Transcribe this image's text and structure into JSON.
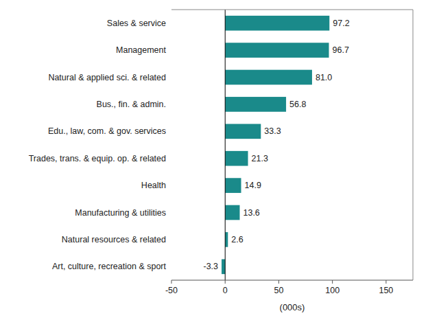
{
  "chart_data": {
    "type": "bar",
    "orientation": "horizontal",
    "categories": [
      "Art, culture, recreation & sport",
      "Natural resources & related",
      "Manufacturing & utilities",
      "Health",
      "Trades, trans. & equip. op. & related",
      "Edu., law, com. & gov. services",
      "Bus., fin. & admin.",
      "Natural & applied sci. & related",
      "Management",
      "Sales & service"
    ],
    "values": [
      -3.3,
      2.6,
      13.6,
      14.9,
      21.3,
      33.3,
      56.8,
      81.0,
      96.7,
      97.2
    ],
    "value_labels": [
      "-3.3",
      "2.6",
      "13.6",
      "14.9",
      "21.3",
      "33.3",
      "56.8",
      "81.0",
      "96.7",
      "97.2"
    ],
    "color": "#1a8a8a",
    "xlabel": "(000s)",
    "xlim": [
      -50,
      175
    ],
    "xticks": [
      -50,
      0,
      50,
      100,
      150
    ],
    "data_labels": true,
    "grid": false
  }
}
